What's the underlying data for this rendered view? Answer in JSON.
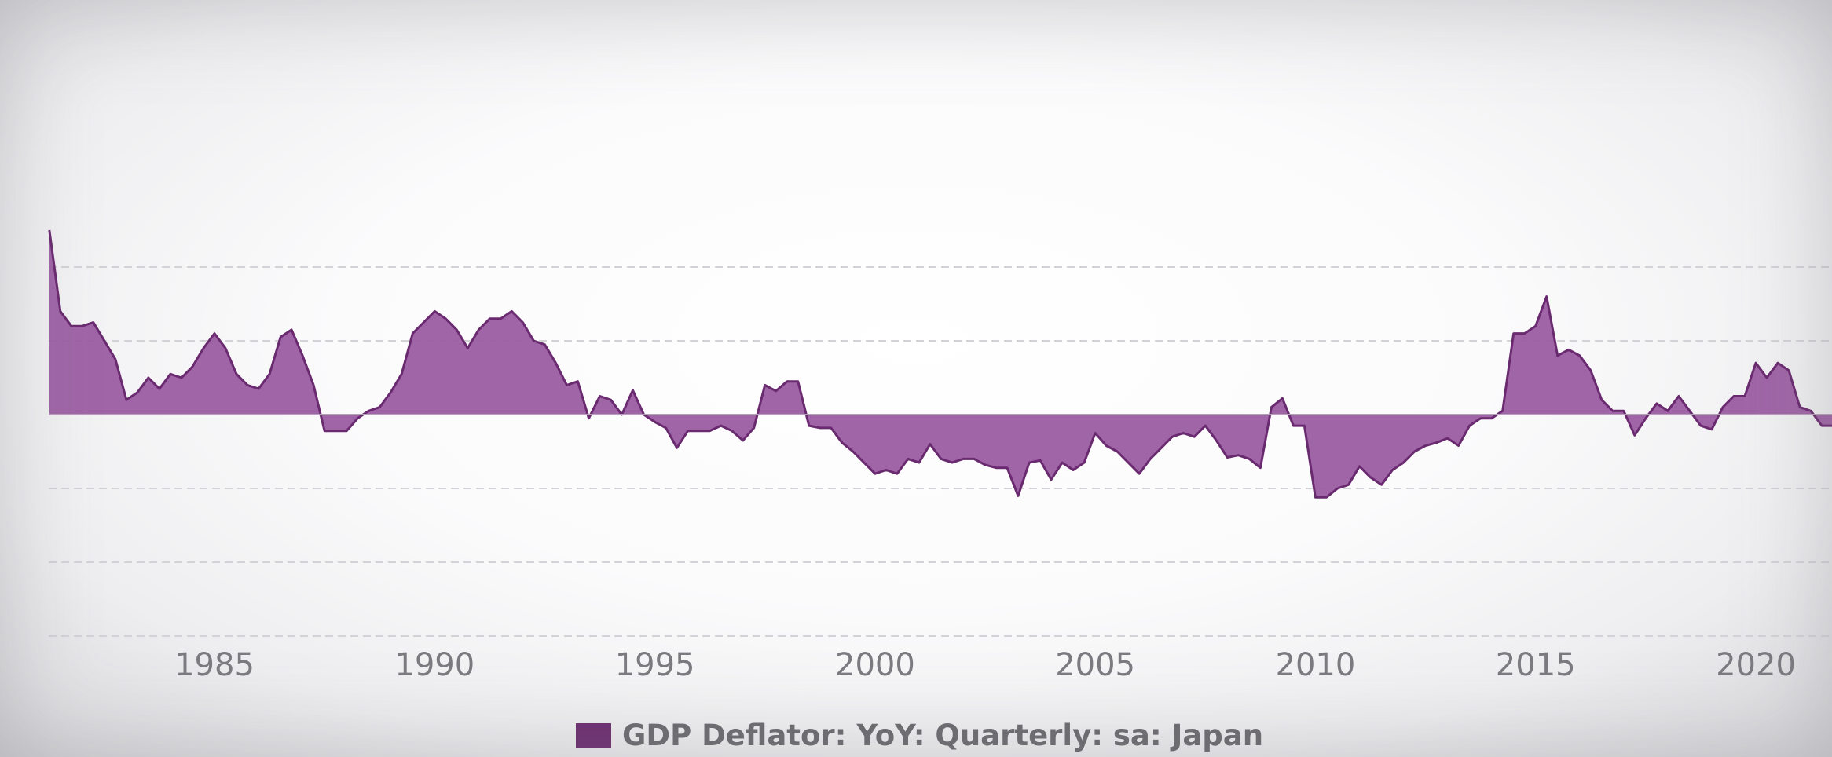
{
  "chart_data": {
    "type": "area",
    "title": "",
    "xlabel": "",
    "ylabel": "",
    "x_ticks": [
      "1985",
      "1990",
      "1995",
      "2000",
      "2005",
      "2010",
      "2015",
      "2020"
    ],
    "xlim": [
      1981.25,
      2022.5
    ],
    "ylim": [
      -3,
      2.5
    ],
    "grid": true,
    "legend_position": "bottom-center",
    "colors": {
      "fill": "#9b5da2",
      "line": "#6a2a6f",
      "legend_swatch": "#6e2e72",
      "grid": "#d3d3d7",
      "zero_line": "#b7a1ba"
    },
    "series": [
      {
        "name": "GDP Deflator: YoY: Quarterly: sa: Japan",
        "x": [
          1981.25,
          1981.5,
          1981.75,
          1982,
          1982.25,
          1982.5,
          1982.75,
          1983,
          1983.25,
          1983.5,
          1983.75,
          1984,
          1984.25,
          1984.5,
          1984.75,
          1985,
          1985.25,
          1985.5,
          1985.75,
          1986,
          1986.25,
          1986.5,
          1986.75,
          1987,
          1987.25,
          1987.5,
          1987.75,
          1988,
          1988.25,
          1988.5,
          1988.75,
          1989,
          1989.25,
          1989.5,
          1989.75,
          1990,
          1990.25,
          1990.5,
          1990.75,
          1991,
          1991.25,
          1991.5,
          1991.75,
          1992,
          1992.25,
          1992.5,
          1992.75,
          1993,
          1993.25,
          1993.5,
          1993.75,
          1994,
          1994.25,
          1994.5,
          1994.75,
          1995,
          1995.25,
          1995.5,
          1995.75,
          1996,
          1996.25,
          1996.5,
          1996.75,
          1997,
          1997.25,
          1997.5,
          1997.75,
          1998,
          1998.25,
          1998.5,
          1998.75,
          1999,
          1999.25,
          1999.5,
          1999.75,
          2000,
          2000.25,
          2000.5,
          2000.75,
          2001,
          2001.25,
          2001.5,
          2001.75,
          2002,
          2002.25,
          2002.5,
          2002.75,
          2003,
          2003.25,
          2003.5,
          2003.75,
          2004,
          2004.25,
          2004.5,
          2004.75,
          2005,
          2005.25,
          2005.5,
          2005.75,
          2006,
          2006.25,
          2006.5,
          2006.75,
          2007,
          2007.25,
          2007.5,
          2007.75,
          2008,
          2008.25,
          2008.5,
          2008.75,
          2009,
          2009.25,
          2009.5,
          2009.75,
          2010,
          2010.25,
          2010.5,
          2010.75,
          2011,
          2011.25,
          2011.5,
          2011.75,
          2012,
          2012.25,
          2012.5,
          2012.75,
          2013,
          2013.25,
          2013.5,
          2013.75,
          2014,
          2014.25,
          2014.5,
          2014.75,
          2015,
          2015.25,
          2015.5,
          2015.75,
          2016,
          2016.25,
          2016.5,
          2016.75,
          2017,
          2017.25,
          2017.5,
          2017.75,
          2018,
          2018.25,
          2018.5,
          2018.75,
          2019,
          2019.25,
          2019.5,
          2019.75,
          2020,
          2020.25,
          2020.5,
          2020.75,
          2021,
          2021.25,
          2021.5,
          2021.75,
          2022,
          2022.25,
          2022.5
        ],
        "y": [
          2.5,
          1.4,
          1.2,
          1.2,
          1.25,
          1.0,
          0.75,
          0.2,
          0.3,
          0.5,
          0.35,
          0.55,
          0.5,
          0.65,
          0.9,
          1.1,
          0.9,
          0.55,
          0.4,
          0.35,
          0.55,
          1.05,
          1.15,
          0.8,
          0.4,
          -0.22,
          -0.22,
          -0.22,
          -0.05,
          0.05,
          0.1,
          0.3,
          0.55,
          1.1,
          1.25,
          1.4,
          1.3,
          1.15,
          0.9,
          1.15,
          1.3,
          1.3,
          1.4,
          1.25,
          1.0,
          0.95,
          0.7,
          0.4,
          0.45,
          -0.05,
          0.25,
          0.2,
          0.0,
          0.33,
          0.0,
          -0.1,
          -0.18,
          -0.45,
          -0.22,
          -0.22,
          -0.22,
          -0.15,
          -0.22,
          -0.35,
          -0.18,
          0.4,
          0.32,
          0.45,
          0.45,
          -0.15,
          -0.18,
          -0.18,
          -0.38,
          -0.5,
          -0.65,
          -0.8,
          -0.75,
          -0.8,
          -0.6,
          -0.65,
          -0.4,
          -0.6,
          -0.65,
          -0.6,
          -0.6,
          -0.68,
          -0.72,
          -0.72,
          -1.1,
          -0.65,
          -0.62,
          -0.88,
          -0.65,
          -0.75,
          -0.65,
          -0.25,
          -0.42,
          -0.5,
          -0.65,
          -0.8,
          -0.6,
          -0.45,
          -0.3,
          -0.25,
          -0.3,
          -0.15,
          -0.35,
          -0.58,
          -0.55,
          -0.6,
          -0.72,
          0.1,
          0.22,
          -0.15,
          -0.15,
          -1.12,
          -1.12,
          -1.0,
          -0.95,
          -0.7,
          -0.85,
          -0.95,
          -0.75,
          -0.65,
          -0.5,
          -0.42,
          -0.38,
          -0.32,
          -0.42,
          -0.15,
          -0.05,
          -0.05,
          0.05,
          1.1,
          1.1,
          1.2,
          1.6,
          0.8,
          0.88,
          0.8,
          0.6,
          0.2,
          0.05,
          0.05,
          -0.28,
          -0.05,
          0.15,
          0.05,
          0.25,
          0.05,
          -0.15,
          -0.2,
          0.1,
          0.25,
          0.25,
          0.7,
          0.5,
          0.7,
          0.6,
          0.1,
          0.05,
          -0.15,
          -0.15,
          -0.2,
          0.1,
          -0.05
        ]
      }
    ]
  },
  "legend": {
    "label": "GDP Deflator: YoY: Quarterly: sa: Japan"
  }
}
